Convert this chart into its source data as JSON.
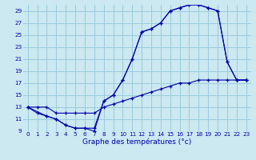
{
  "xlabel": "Graphe des températures (°c)",
  "background_color": "#cce8f0",
  "grid_color": "#99ccdd",
  "line_color": "#0000aa",
  "xlim": [
    -0.5,
    23.5
  ],
  "ylim": [
    9,
    30
  ],
  "yticks": [
    9,
    11,
    13,
    15,
    17,
    19,
    21,
    23,
    25,
    27,
    29
  ],
  "xticks": [
    0,
    1,
    2,
    3,
    4,
    5,
    6,
    7,
    8,
    9,
    10,
    11,
    12,
    13,
    14,
    15,
    16,
    17,
    18,
    19,
    20,
    21,
    22,
    23
  ],
  "line1_x": [
    0,
    1,
    2,
    3,
    4,
    5,
    6,
    7,
    8,
    9,
    10,
    11,
    12,
    13,
    14,
    15,
    16,
    17,
    18,
    19,
    20,
    21,
    22,
    23
  ],
  "line1_y": [
    13,
    12,
    11.5,
    11,
    10,
    9.5,
    9.5,
    9,
    14,
    15,
    17.5,
    21,
    25.5,
    26,
    27,
    29,
    29.5,
    30,
    30,
    29.5,
    29,
    20.5,
    17.5,
    17.5
  ],
  "line2_x": [
    0,
    2,
    3,
    4,
    5,
    6,
    7,
    8,
    9,
    10,
    11,
    12,
    13,
    14,
    15,
    16,
    17,
    18,
    19,
    20,
    21,
    22,
    23
  ],
  "line2_y": [
    13,
    11.5,
    11,
    10,
    9.5,
    9.5,
    9.5,
    14,
    15,
    17.5,
    21,
    25.5,
    26,
    27,
    29,
    29.5,
    30,
    30,
    29.5,
    29,
    20.5,
    17.5,
    17.5
  ],
  "line3_x": [
    0,
    1,
    2,
    3,
    4,
    5,
    6,
    7,
    8,
    9,
    10,
    11,
    12,
    13,
    14,
    15,
    16,
    17,
    18,
    19,
    20,
    21,
    22,
    23
  ],
  "line3_y": [
    13,
    13,
    13,
    12,
    12,
    12,
    12,
    12,
    13,
    13.5,
    14,
    14.5,
    15,
    15.5,
    16,
    16.5,
    17,
    17,
    17.5,
    17.5,
    17.5,
    17.5,
    17.5,
    17.5
  ],
  "xlabel_fontsize": 6.5,
  "tick_fontsize": 5.2
}
